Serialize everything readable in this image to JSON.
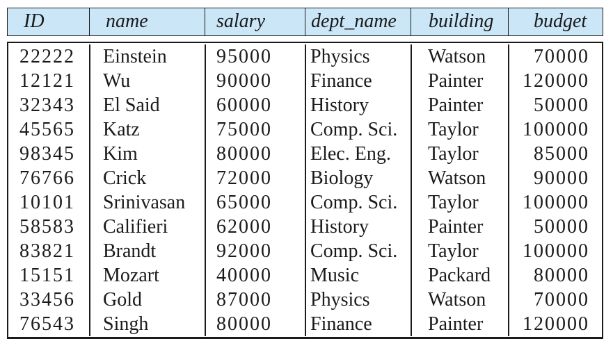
{
  "chart_data": {
    "type": "table",
    "columns": [
      {
        "label": "ID"
      },
      {
        "label": "name"
      },
      {
        "label": "salary"
      },
      {
        "label": "dept_name"
      },
      {
        "label": "building"
      },
      {
        "label": "budget"
      }
    ],
    "column_keys": [
      "id",
      "name",
      "salary",
      "dept_name",
      "building",
      "budget"
    ],
    "rows": [
      [
        "22222",
        "Einstein",
        "95000",
        "Physics",
        "Watson",
        "70000"
      ],
      [
        "12121",
        "Wu",
        "90000",
        "Finance",
        "Painter",
        "120000"
      ],
      [
        "32343",
        "El Said",
        "60000",
        "History",
        "Painter",
        "50000"
      ],
      [
        "45565",
        "Katz",
        "75000",
        "Comp. Sci.",
        "Taylor",
        "100000"
      ],
      [
        "98345",
        "Kim",
        "80000",
        "Elec. Eng.",
        "Taylor",
        "85000"
      ],
      [
        "76766",
        "Crick",
        "72000",
        "Biology",
        "Watson",
        "90000"
      ],
      [
        "10101",
        "Srinivasan",
        "65000",
        "Comp. Sci.",
        "Taylor",
        "100000"
      ],
      [
        "58583",
        "Califieri",
        "62000",
        "History",
        "Painter",
        "50000"
      ],
      [
        "83821",
        "Brandt",
        "92000",
        "Comp. Sci.",
        "Taylor",
        "100000"
      ],
      [
        "15151",
        "Mozart",
        "40000",
        "Music",
        "Packard",
        "80000"
      ],
      [
        "33456",
        "Gold",
        "87000",
        "Physics",
        "Watson",
        "70000"
      ],
      [
        "76543",
        "Singh",
        "80000",
        "Finance",
        "Painter",
        "120000"
      ]
    ]
  },
  "colors": {
    "header_bg": "#cbe6f7",
    "border": "#1a1a1a",
    "text": "#1a1a1a",
    "page_bg": "#ffffff"
  }
}
